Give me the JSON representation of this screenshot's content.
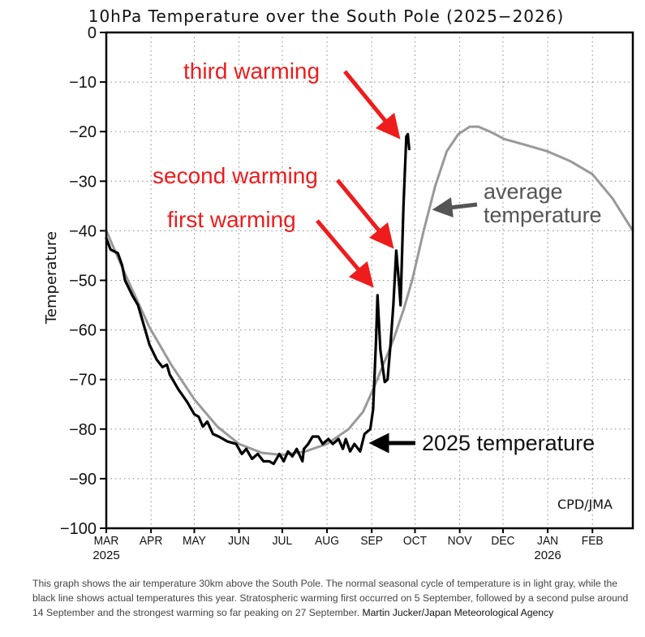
{
  "chart_data": {
    "type": "line",
    "title": "10hPa Temperature over the South Pole (2025−2026)",
    "xlabel": "",
    "ylabel": "Temperature",
    "ylim": [
      -100,
      0
    ],
    "yticks": [
      0,
      -10,
      -20,
      -30,
      -40,
      -50,
      -60,
      -70,
      -80,
      -90,
      -100
    ],
    "ytick_labels": [
      "0",
      "−10",
      "−20",
      "−30",
      "−40",
      "−50",
      "−60",
      "−70",
      "−80",
      "−90",
      "−100"
    ],
    "x_unit": "days since 1 Mar 2025",
    "xlim": [
      0,
      365
    ],
    "xticks": [
      {
        "day": 0,
        "label": "MAR",
        "sublabel": "2025"
      },
      {
        "day": 31,
        "label": "APR",
        "sublabel": ""
      },
      {
        "day": 61,
        "label": "MAY",
        "sublabel": ""
      },
      {
        "day": 92,
        "label": "JUN",
        "sublabel": ""
      },
      {
        "day": 122,
        "label": "JUL",
        "sublabel": ""
      },
      {
        "day": 153,
        "label": "AUG",
        "sublabel": ""
      },
      {
        "day": 184,
        "label": "SEP",
        "sublabel": ""
      },
      {
        "day": 214,
        "label": "OCT",
        "sublabel": ""
      },
      {
        "day": 245,
        "label": "NOV",
        "sublabel": ""
      },
      {
        "day": 275,
        "label": "DEC",
        "sublabel": ""
      },
      {
        "day": 306,
        "label": "JAN",
        "sublabel": "2026"
      },
      {
        "day": 337,
        "label": "FEB",
        "sublabel": ""
      }
    ],
    "grid": true,
    "series": [
      {
        "name": "average temperature",
        "color": "#999999",
        "x": [
          0,
          15,
          30,
          45,
          61,
          77,
          92,
          108,
          122,
          138,
          153,
          168,
          178,
          185,
          192,
          199,
          206,
          212,
          220,
          228,
          236,
          244,
          252,
          258,
          266,
          276,
          292,
          306,
          322,
          337,
          351,
          365
        ],
        "y": [
          -40,
          -50,
          -59.5,
          -67,
          -74,
          -79.5,
          -83,
          -84.8,
          -85.2,
          -84.5,
          -83,
          -80,
          -76.5,
          -72,
          -67,
          -62,
          -56,
          -50,
          -40,
          -31,
          -24,
          -20.5,
          -19,
          -19,
          -20,
          -21.5,
          -22.8,
          -24,
          -26,
          -28.6,
          -33.5,
          -40
        ]
      },
      {
        "name": "2025 temperature",
        "color": "#000000",
        "x": [
          0,
          3,
          8,
          11,
          13,
          18,
          22,
          26,
          30,
          35,
          39,
          42,
          44,
          50,
          56,
          61,
          64,
          67,
          70,
          74,
          78,
          84,
          90,
          94,
          97,
          101,
          105,
          109,
          113,
          116,
          120,
          123,
          126,
          129,
          132,
          136,
          137,
          140,
          143,
          147,
          150,
          154,
          157,
          161,
          164,
          166,
          169,
          172,
          176,
          179,
          183,
          185,
          187,
          188,
          190,
          193,
          195,
          197,
          199,
          201,
          203,
          204,
          206,
          208,
          209,
          210
        ],
        "y": [
          -41.5,
          -43.8,
          -44.5,
          -47,
          -50,
          -53,
          -55,
          -59,
          -63,
          -66,
          -67.5,
          -67,
          -69,
          -72,
          -74.5,
          -77,
          -77.5,
          -79.5,
          -78.5,
          -81,
          -81.5,
          -82.5,
          -83,
          -85,
          -84,
          -86,
          -85,
          -86.5,
          -86.5,
          -87,
          -85,
          -86.5,
          -84.5,
          -85.5,
          -84,
          -86.5,
          -84,
          -83,
          -81.5,
          -81.5,
          -83,
          -82,
          -83,
          -82,
          -84,
          -82,
          -84.5,
          -83,
          -84.5,
          -81,
          -80,
          -76,
          -62,
          -53,
          -64,
          -70.5,
          -70,
          -63,
          -55,
          -44,
          -51,
          -55,
          -35,
          -21,
          -20.5,
          -23.5
        ]
      }
    ],
    "annotations": [
      {
        "text": "third warming",
        "color": "#ee1c1c",
        "points_to": {
          "day": 208,
          "temp": -21
        }
      },
      {
        "text": "second warming",
        "color": "#ee1c1c",
        "points_to": {
          "day": 199,
          "temp": -43
        }
      },
      {
        "text": "first warming",
        "color": "#ee1c1c",
        "points_to": {
          "day": 185,
          "temp": -51
        }
      },
      {
        "text_lines": [
          "average",
          "temperature"
        ],
        "color": "#555555",
        "points_to": {
          "day": 227,
          "temp": -36
        }
      },
      {
        "text": "2025 temperature",
        "color": "#000000",
        "points_to": {
          "day": 184,
          "temp": -83
        }
      },
      {
        "text": "CPD/JMA",
        "color": "#000000"
      }
    ]
  },
  "caption": {
    "text": "This graph shows the air temperature 30km above the South Pole. The normal seasonal cycle of temperature is in light gray, while the black line shows actual temperatures this year. Stratospheric warming first occurred on 5 September, followed by a second pulse around 14 September and the strongest warming so far peaking on 27 September. ",
    "credit": "Martin Jucker/Japan Meteorological Agency"
  }
}
